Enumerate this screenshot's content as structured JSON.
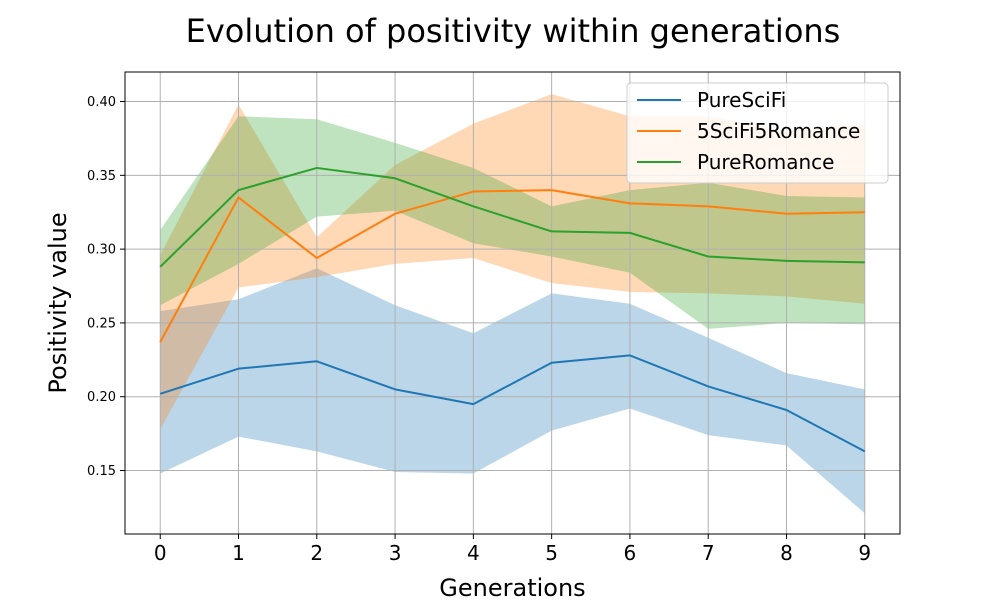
{
  "chart_data": {
    "type": "line",
    "title": "Evolution of positivity within generations",
    "xlabel": "Generations",
    "ylabel": "Positivity value",
    "x": [
      0,
      1,
      2,
      3,
      4,
      5,
      6,
      7,
      8,
      9
    ],
    "xlim": [
      -0.45,
      9.45
    ],
    "ylim": [
      0.107,
      0.42
    ],
    "yticks": [
      "0.15",
      "0.20",
      "0.25",
      "0.30",
      "0.35",
      "0.40"
    ],
    "grid": true,
    "legend_position": "top-right",
    "series": [
      {
        "name": "PureSciFi",
        "color": "#1f77b4",
        "fill_color": "#1f77b4",
        "values": [
          0.202,
          0.219,
          0.224,
          0.205,
          0.195,
          0.223,
          0.228,
          0.207,
          0.191,
          0.163
        ],
        "lower": [
          0.148,
          0.173,
          0.163,
          0.149,
          0.148,
          0.177,
          0.192,
          0.174,
          0.167,
          0.121
        ],
        "upper": [
          0.258,
          0.266,
          0.287,
          0.262,
          0.243,
          0.27,
          0.263,
          0.24,
          0.216,
          0.205
        ]
      },
      {
        "name": "5SciFi5Romance",
        "color": "#ff7f0e",
        "fill_color": "#ff7f0e",
        "values": [
          0.237,
          0.335,
          0.294,
          0.324,
          0.339,
          0.34,
          0.331,
          0.329,
          0.324,
          0.325
        ],
        "lower": [
          0.178,
          0.274,
          0.281,
          0.29,
          0.294,
          0.277,
          0.271,
          0.27,
          0.268,
          0.263
        ],
        "upper": [
          0.296,
          0.398,
          0.308,
          0.357,
          0.385,
          0.405,
          0.39,
          0.39,
          0.38,
          0.385
        ]
      },
      {
        "name": "PureRomance",
        "color": "#2ca02c",
        "fill_color": "#2ca02c",
        "values": [
          0.288,
          0.34,
          0.355,
          0.348,
          0.329,
          0.312,
          0.311,
          0.295,
          0.292,
          0.291
        ],
        "lower": [
          0.262,
          0.29,
          0.322,
          0.326,
          0.304,
          0.295,
          0.284,
          0.246,
          0.25,
          0.249
        ],
        "upper": [
          0.313,
          0.39,
          0.388,
          0.372,
          0.355,
          0.329,
          0.34,
          0.345,
          0.336,
          0.335
        ]
      }
    ]
  }
}
